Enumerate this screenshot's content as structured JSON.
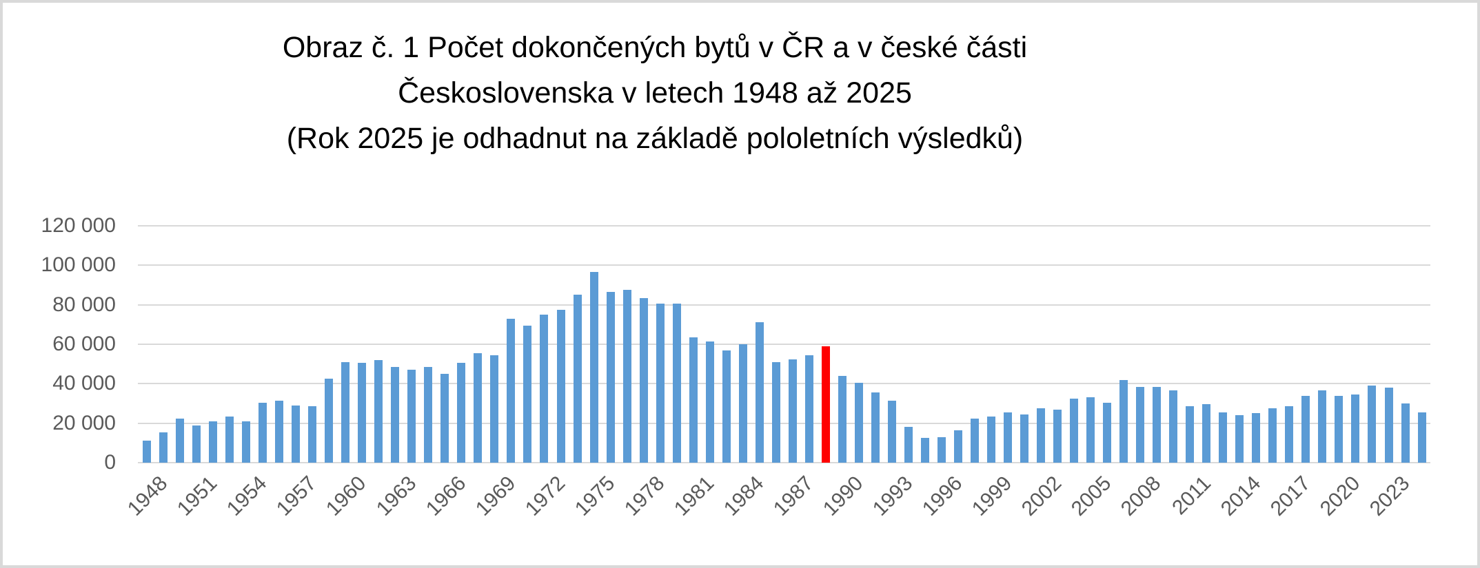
{
  "frame": {
    "border_color": "#d9d9d9",
    "background": "#ffffff"
  },
  "title": {
    "line1": "Obraz č. 1  Počet dokončených bytů v ČR a v české části",
    "line2": "Československa v letech 1948 až 2025",
    "line3": "(Rok 2025 je odhadnut na základě pololetních výsledků)"
  },
  "chart_data": {
    "type": "bar",
    "title": "Obraz č. 1 Počet dokončených bytů v ČR a v české části Československa v letech 1948 až 2025",
    "subtitle": "(Rok 2025 je odhadnut na základě pololetních výsledků)",
    "xlabel": "",
    "ylabel": "",
    "ylim": [
      0,
      120000
    ],
    "ytick_interval": 20000,
    "ytick_labels_top_to_bottom": [
      "120 000",
      "100 000",
      "80 000",
      "60 000",
      "40 000",
      "20 000",
      "0"
    ],
    "grid": true,
    "legend": false,
    "highlight_year": 1989,
    "colors": {
      "bar": "#5b9bd5",
      "highlight": "#ff0000",
      "grid": "#d9d9d9",
      "axis_text": "#595959",
      "title_text": "#000000"
    },
    "x": [
      1948,
      1949,
      1950,
      1951,
      1952,
      1953,
      1954,
      1955,
      1956,
      1957,
      1958,
      1959,
      1960,
      1961,
      1962,
      1963,
      1964,
      1965,
      1966,
      1967,
      1968,
      1969,
      1970,
      1971,
      1972,
      1973,
      1974,
      1975,
      1976,
      1977,
      1978,
      1979,
      1980,
      1981,
      1982,
      1983,
      1984,
      1985,
      1986,
      1987,
      1988,
      1989,
      1990,
      1991,
      1992,
      1993,
      1994,
      1995,
      1996,
      1997,
      1998,
      1999,
      2000,
      2001,
      2002,
      2003,
      2004,
      2005,
      2006,
      2007,
      2008,
      2009,
      2010,
      2011,
      2012,
      2013,
      2014,
      2015,
      2016,
      2017,
      2018,
      2019,
      2020,
      2021,
      2022,
      2023,
      2024,
      2025
    ],
    "values": [
      11000,
      15500,
      22500,
      19000,
      21000,
      23500,
      21000,
      30500,
      31500,
      29000,
      28500,
      42500,
      51000,
      50500,
      52000,
      48500,
      47000,
      48500,
      45000,
      50500,
      55500,
      54500,
      73000,
      69500,
      75000,
      77500,
      85000,
      96500,
      86500,
      87500,
      83500,
      80500,
      80500,
      63500,
      61500,
      57000,
      60000,
      71000,
      51000,
      52500,
      54500,
      59000,
      44000,
      40500,
      35500,
      31500,
      18000,
      12500,
      13000,
      16500,
      22500,
      23500,
      25500,
      24500,
      27500,
      27000,
      32500,
      33000,
      30500,
      42000,
      38500,
      38500,
      36500,
      28500,
      29500,
      25500,
      24000,
      25000,
      27500,
      28500,
      34000,
      36500,
      34000,
      34500,
      39000,
      38000,
      30000,
      25500
    ],
    "xtick_years": [
      1948,
      1951,
      1954,
      1957,
      1960,
      1963,
      1966,
      1969,
      1972,
      1975,
      1978,
      1981,
      1984,
      1987,
      1990,
      1993,
      1996,
      1999,
      2002,
      2005,
      2008,
      2011,
      2014,
      2017,
      2020,
      2023
    ]
  }
}
